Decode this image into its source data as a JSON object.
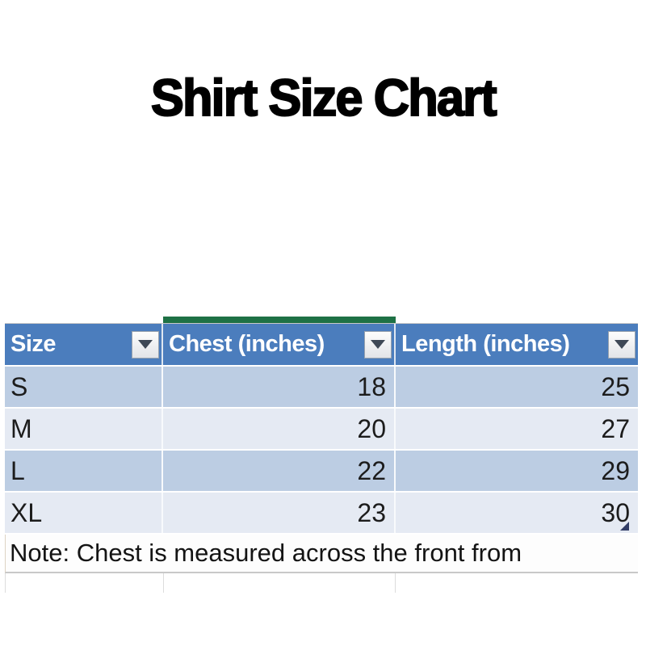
{
  "page": {
    "title": "Shirt Size Chart"
  },
  "spreadsheet": {
    "header": {
      "columns": [
        {
          "label": "Size"
        },
        {
          "label": "Chest (inches)"
        },
        {
          "label": "Length (inches)"
        }
      ],
      "filter_icon": "filter-dropdown-arrow"
    },
    "rows": [
      {
        "size": "S",
        "chest": "18",
        "length": "25"
      },
      {
        "size": "M",
        "chest": "20",
        "length": "27"
      },
      {
        "size": "L",
        "chest": "22",
        "length": "29"
      },
      {
        "size": "XL",
        "chest": "23",
        "length": "30"
      }
    ],
    "note": "Note: Chest is measured across the front from",
    "colors": {
      "header_bg": "#4b7dbd",
      "header_text": "#ffffff",
      "band_dark": "#bccde3",
      "band_light": "#e5eaf3",
      "selection_bar_green": "#1e7145",
      "resize_handle": "#323d66",
      "cell_text": "#1c1c1c"
    }
  }
}
